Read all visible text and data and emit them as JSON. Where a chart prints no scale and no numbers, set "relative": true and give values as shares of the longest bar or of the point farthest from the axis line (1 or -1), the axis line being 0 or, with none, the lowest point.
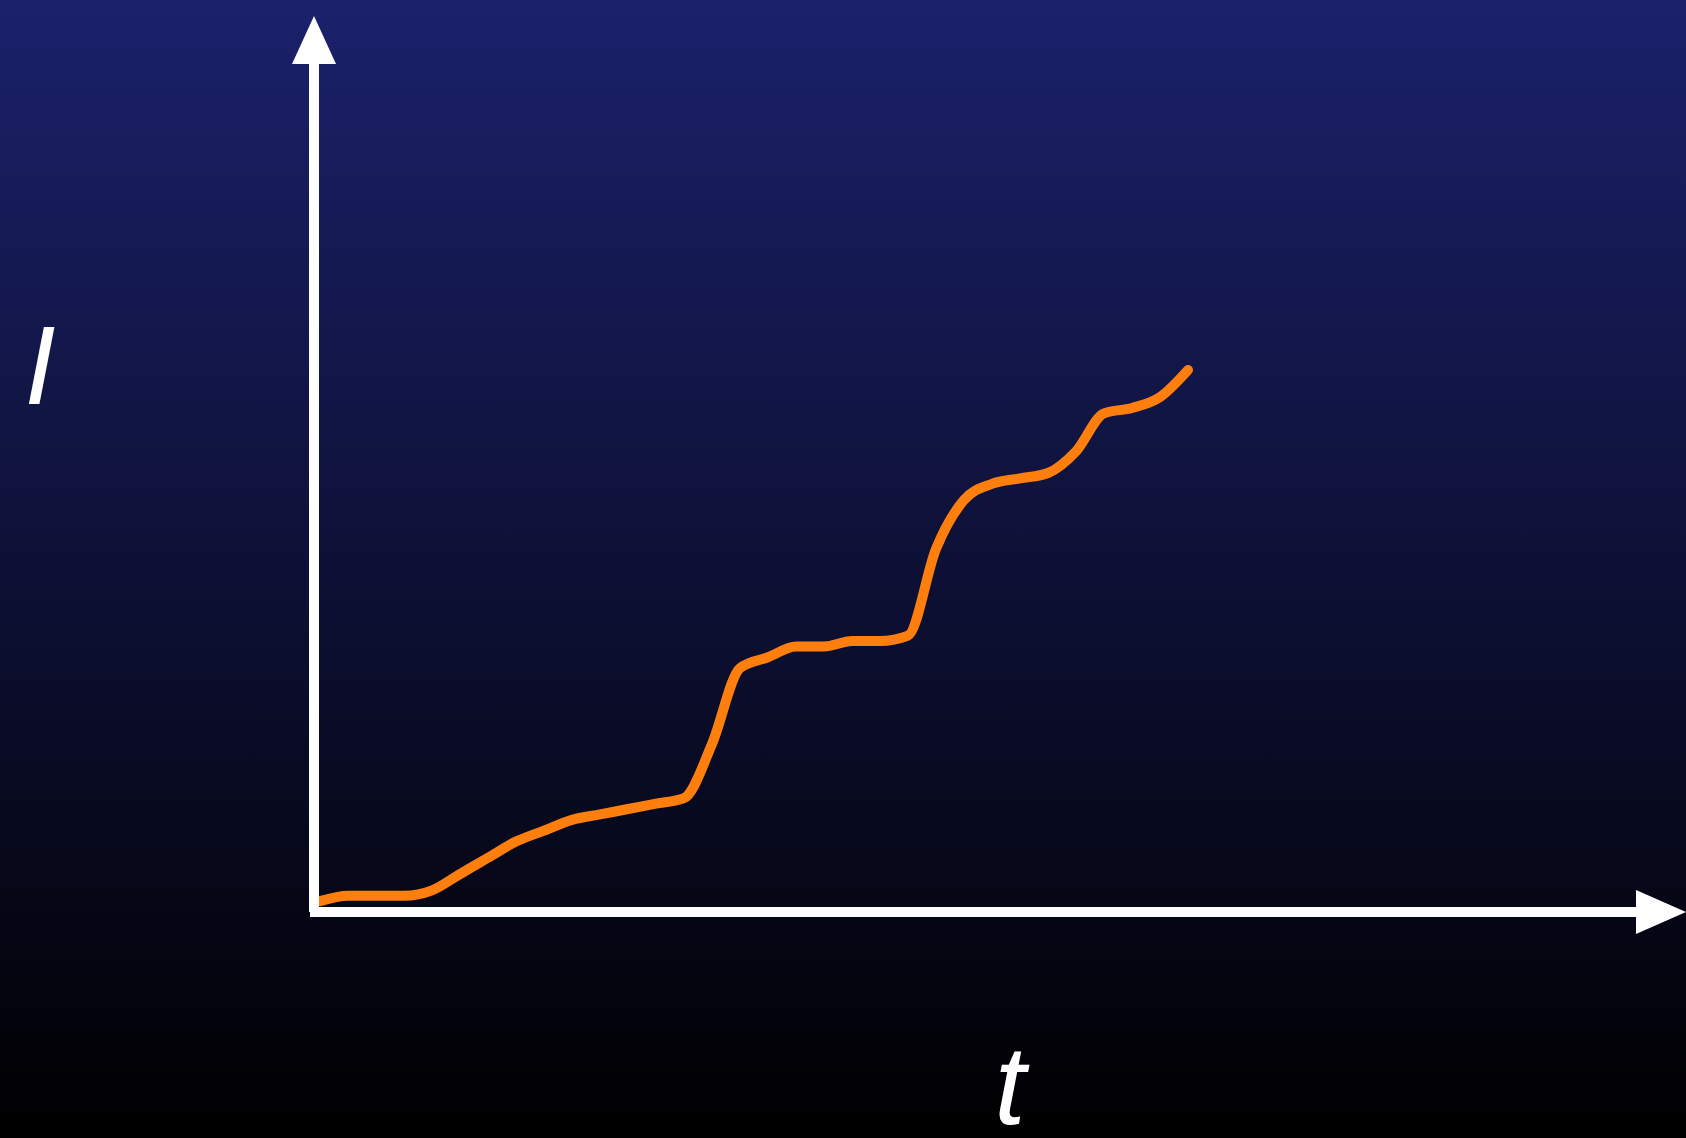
{
  "chart_data": {
    "type": "line",
    "relative": true,
    "xlabel": "t",
    "ylabel": "I",
    "categories": [
      null,
      null,
      null,
      null,
      null,
      null,
      null,
      null,
      null,
      null,
      null,
      null,
      null,
      null,
      null,
      null,
      null,
      null,
      null,
      null,
      null,
      null,
      null,
      null,
      null,
      null,
      null,
      null,
      null,
      null,
      null,
      null
    ],
    "series": [
      {
        "color": "#ff7f0e",
        "values": [
          0.02,
          0.03,
          0.03,
          0.03,
          0.04,
          0.07,
          0.1,
          0.13,
          0.15,
          0.17,
          0.18,
          0.19,
          0.2,
          0.21,
          0.31,
          0.45,
          0.47,
          0.49,
          0.49,
          0.5,
          0.5,
          0.51,
          0.67,
          0.76,
          0.79,
          0.8,
          0.81,
          0.85,
          0.92,
          0.93,
          0.95,
          1
        ]
      }
    ]
  }
}
